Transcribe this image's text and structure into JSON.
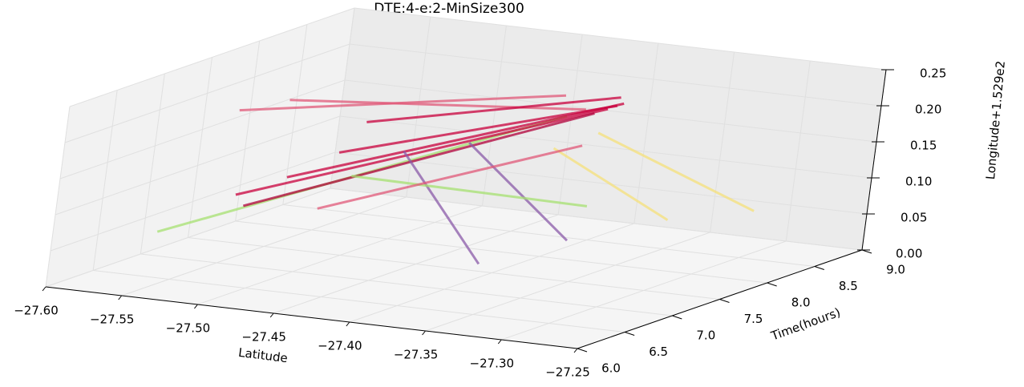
{
  "chart_data": {
    "type": "line3d",
    "title": "DTE:4-e:2-MinSize300",
    "xlabel": "Latitude",
    "ylabel": "Time(hours)",
    "zlabel": "Longitude+1.529e2",
    "xlim": [
      -27.6,
      -27.25
    ],
    "ylim": [
      6.0,
      9.0
    ],
    "zlim": [
      0.0,
      0.25
    ],
    "xticks": [
      {
        "value": -27.6,
        "label": "−27.60"
      },
      {
        "value": -27.55,
        "label": "−27.55"
      },
      {
        "value": -27.5,
        "label": "−27.50"
      },
      {
        "value": -27.45,
        "label": "−27.45"
      },
      {
        "value": -27.4,
        "label": "−27.40"
      },
      {
        "value": -27.35,
        "label": "−27.35"
      },
      {
        "value": -27.3,
        "label": "−27.30"
      },
      {
        "value": -27.25,
        "label": "−27.25"
      }
    ],
    "yticks": [
      {
        "value": 6.0,
        "label": "6.0"
      },
      {
        "value": 6.5,
        "label": "6.5"
      },
      {
        "value": 7.0,
        "label": "7.0"
      },
      {
        "value": 7.5,
        "label": "7.5"
      },
      {
        "value": 8.0,
        "label": "8.0"
      },
      {
        "value": 8.5,
        "label": "8.5"
      },
      {
        "value": 9.0,
        "label": "9.0"
      }
    ],
    "zticks": [
      {
        "value": 0.0,
        "label": "0.00"
      },
      {
        "value": 0.05,
        "label": "0.05"
      },
      {
        "value": 0.1,
        "label": "0.10"
      },
      {
        "value": 0.15,
        "label": "0.15"
      },
      {
        "value": 0.2,
        "label": "0.20"
      },
      {
        "value": 0.25,
        "label": "0.25"
      }
    ],
    "grid": true,
    "series": [
      {
        "color": "#a6e070",
        "x": [
          -27.55,
          -27.4
        ],
        "y": [
          6.3,
          8.1
        ],
        "z": [
          0.075,
          0.19
        ]
      },
      {
        "color": "#c8003c",
        "x": [
          -27.52,
          -27.38
        ],
        "y": [
          6.6,
          8.2
        ],
        "z": [
          0.12,
          0.2
        ]
      },
      {
        "color": "#c8003c",
        "x": [
          -27.5,
          -27.37
        ],
        "y": [
          6.8,
          8.2
        ],
        "z": [
          0.14,
          0.21
        ]
      },
      {
        "color": "#e05878",
        "x": [
          -27.56,
          -27.42
        ],
        "y": [
          7.2,
          8.4
        ],
        "z": [
          0.2,
          0.2
        ]
      },
      {
        "color": "#e05878",
        "x": [
          -27.54,
          -27.4
        ],
        "y": [
          7.4,
          8.3
        ],
        "z": [
          0.21,
          0.19
        ]
      },
      {
        "color": "#c8003c",
        "x": [
          -27.48,
          -27.38
        ],
        "y": [
          7.0,
          8.3
        ],
        "z": [
          0.17,
          0.2
        ]
      },
      {
        "color": "#b0003a",
        "x": [
          -27.52,
          -27.4
        ],
        "y": [
          6.7,
          8.4
        ],
        "z": [
          0.1,
          0.18
        ]
      },
      {
        "color": "#8a5aa8",
        "x": [
          -27.45,
          -27.38
        ],
        "y": [
          7.2,
          7.0
        ],
        "z": [
          0.17,
          0.04
        ]
      },
      {
        "color": "#8a5aa8",
        "x": [
          -27.42,
          -27.36
        ],
        "y": [
          7.4,
          7.6
        ],
        "z": [
          0.18,
          0.05
        ]
      },
      {
        "color": "#f5e07a",
        "x": [
          -27.4,
          -27.32
        ],
        "y": [
          8.0,
          8.0
        ],
        "z": [
          0.15,
          0.07
        ]
      },
      {
        "color": "#f5e07a",
        "x": [
          -27.39,
          -27.3
        ],
        "y": [
          8.3,
          8.6
        ],
        "z": [
          0.16,
          0.06
        ]
      },
      {
        "color": "#c8003c",
        "x": [
          -27.5,
          -27.39
        ],
        "y": [
          7.6,
          8.5
        ],
        "z": [
          0.18,
          0.2
        ]
      },
      {
        "color": "#a6e070",
        "x": [
          -27.47,
          -27.35
        ],
        "y": [
          7.0,
          7.6
        ],
        "z": [
          0.14,
          0.1
        ]
      },
      {
        "color": "#e05878",
        "x": [
          -27.46,
          -27.37
        ],
        "y": [
          6.5,
          7.8
        ],
        "z": [
          0.12,
          0.17
        ]
      }
    ]
  }
}
